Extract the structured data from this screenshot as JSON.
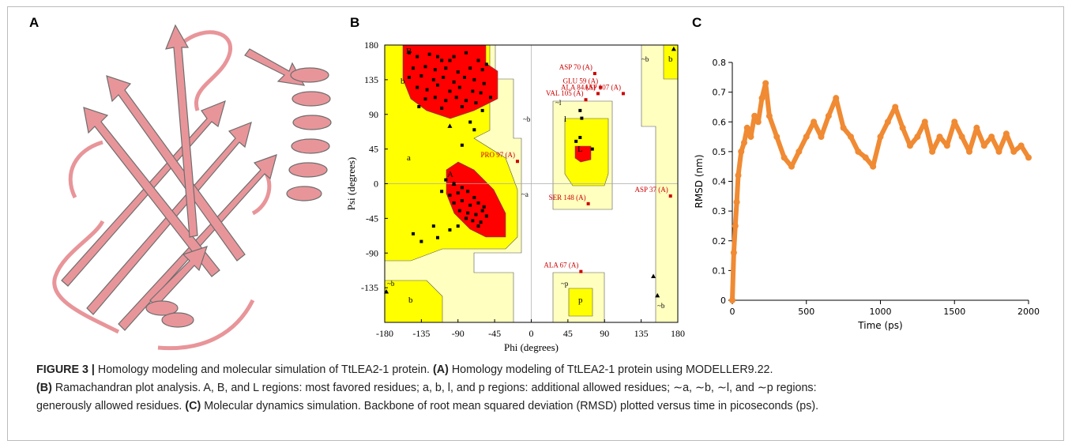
{
  "panel_labels": [
    "A",
    "B",
    "C"
  ],
  "chart_data": [
    {
      "type": "scatter",
      "x_label": "Phi (degrees)",
      "y_label": "Psi (degrees)",
      "xlim": [
        -180,
        180
      ],
      "ylim": [
        -180,
        180
      ],
      "xticks": [
        -180,
        -135,
        -90,
        -45,
        0,
        45,
        90,
        135,
        180
      ],
      "yticks": [
        -135,
        -90,
        -45,
        0,
        45,
        90,
        135,
        180
      ],
      "region_labels": [
        "B",
        "b",
        "a",
        "A",
        "L",
        "l",
        "~l",
        "~b",
        "~a",
        "~b",
        "b",
        "~b",
        "b",
        "~p",
        "p",
        "~b"
      ],
      "series": [
        {
          "color": "#000000",
          "marker": "square",
          "x": [
            -150,
            -140,
            -125,
            -110,
            -95,
            -80,
            -65,
            -55,
            -145,
            -130,
            -118,
            -105,
            -90,
            -75,
            -60,
            -150,
            -135,
            -120,
            -108,
            -95,
            -82,
            -70,
            -58,
            -140,
            -128,
            -115,
            -100,
            -88,
            -72,
            -62,
            -130,
            -118,
            -105,
            -92,
            -80,
            -68,
            -50,
            -138,
            -110,
            -85,
            -60,
            -75,
            -70,
            -85,
            -100,
            -115,
            -105,
            -95,
            -85,
            -110,
            -100,
            -90,
            -78,
            -70,
            -95,
            -85,
            -75,
            -65,
            -58,
            -88,
            -78,
            -68,
            -60,
            -72,
            -62,
            -80,
            -65,
            -55,
            -120,
            -135,
            -145,
            -115,
            -100,
            -90,
            60,
            62,
            60,
            75,
            55
          ],
          "values": [
            170,
            165,
            168,
            160,
            165,
            170,
            160,
            155,
            150,
            152,
            148,
            150,
            145,
            150,
            148,
            138,
            140,
            135,
            138,
            132,
            138,
            135,
            130,
            125,
            122,
            128,
            120,
            125,
            120,
            118,
            110,
            112,
            108,
            112,
            108,
            105,
            112,
            100,
            98,
            100,
            95,
            80,
            70,
            50,
            160,
            165,
            5,
            0,
            -5,
            -10,
            -15,
            -12,
            -10,
            -18,
            -25,
            -22,
            -28,
            -25,
            -30,
            -35,
            -38,
            -40,
            -35,
            -48,
            -50,
            -45,
            -55,
            -42,
            -55,
            -75,
            -65,
            -70,
            -60,
            -55,
            95,
            85,
            60,
            45,
            55
          ]
        },
        {
          "color": "#000000",
          "marker": "triangle",
          "x": [
            -100,
            -95,
            -178,
            150,
            155,
            175
          ],
          "values": [
            75,
            0,
            -140,
            -120,
            -145,
            175
          ]
        },
        {
          "color": "#cc0000",
          "marker": "square",
          "x": [
            78,
            85,
            82,
            113,
            67,
            -17,
            70,
            171,
            61
          ],
          "values": [
            143,
            125,
            117,
            117,
            109,
            29,
            -26,
            -16,
            -114
          ],
          "labels": [
            "ASP 70 (A)",
            "GLU 59 (A)",
            "ALA 84 (A)",
            "ASP 107 (A)",
            "VAL 105 (A)",
            "PRO 97 (A)",
            "SER 148 (A)",
            "ASP 37 (A)",
            "ALA 67 (A)"
          ]
        }
      ]
    },
    {
      "type": "line",
      "x_label": "Time (ps)",
      "y_label": "RMSD (nm)",
      "xlim": [
        0,
        2000
      ],
      "ylim": [
        0,
        0.8
      ],
      "xticks": [
        0,
        500,
        1000,
        1500,
        2000
      ],
      "yticks": [
        0,
        0.1,
        0.2,
        0.3,
        0.4,
        0.5,
        0.6,
        0.7,
        0.8
      ],
      "x": [
        0,
        10,
        20,
        30,
        40,
        60,
        80,
        100,
        125,
        150,
        175,
        200,
        225,
        250,
        300,
        350,
        400,
        450,
        500,
        550,
        600,
        650,
        700,
        750,
        800,
        850,
        900,
        950,
        1000,
        1050,
        1100,
        1150,
        1200,
        1250,
        1300,
        1350,
        1400,
        1450,
        1500,
        1550,
        1600,
        1650,
        1700,
        1750,
        1800,
        1850,
        1900,
        1950,
        2000
      ],
      "series": [
        {
          "color": "#f08a33",
          "values": [
            0,
            0.16,
            0.25,
            0.33,
            0.42,
            0.5,
            0.53,
            0.58,
            0.55,
            0.62,
            0.6,
            0.68,
            0.73,
            0.62,
            0.55,
            0.48,
            0.45,
            0.5,
            0.55,
            0.6,
            0.55,
            0.62,
            0.68,
            0.58,
            0.55,
            0.5,
            0.48,
            0.45,
            0.55,
            0.6,
            0.65,
            0.58,
            0.52,
            0.55,
            0.6,
            0.5,
            0.55,
            0.52,
            0.6,
            0.55,
            0.5,
            0.58,
            0.52,
            0.55,
            0.5,
            0.56,
            0.5,
            0.52,
            0.48
          ]
        }
      ]
    }
  ],
  "caption": [
    [
      {
        "text": "FIGURE 3 |",
        "bold": true
      },
      {
        "text": " Homology modeling and molecular simulation of TtLEA2-1 protein. "
      },
      {
        "text": "(A)",
        "bold": true
      },
      {
        "text": " Homology modeling of TtLEA2-1 protein using MODELLER9.22."
      }
    ],
    [
      {
        "text": "(B)",
        "bold": true
      },
      {
        "text": " Ramachandran plot analysis. A, B, and L regions: most favored residues; a, b, l, and p regions: additional allowed residues; ∼a, ∼b, ∼l, and ∼p regions:"
      }
    ],
    [
      {
        "text": "generously allowed residues. "
      },
      {
        "text": "(C)",
        "bold": true
      },
      {
        "text": " Molecular dynamics simulation. Backbone of root mean squared deviation (RMSD) plotted versus time in picoseconds (ps)."
      }
    ]
  ]
}
